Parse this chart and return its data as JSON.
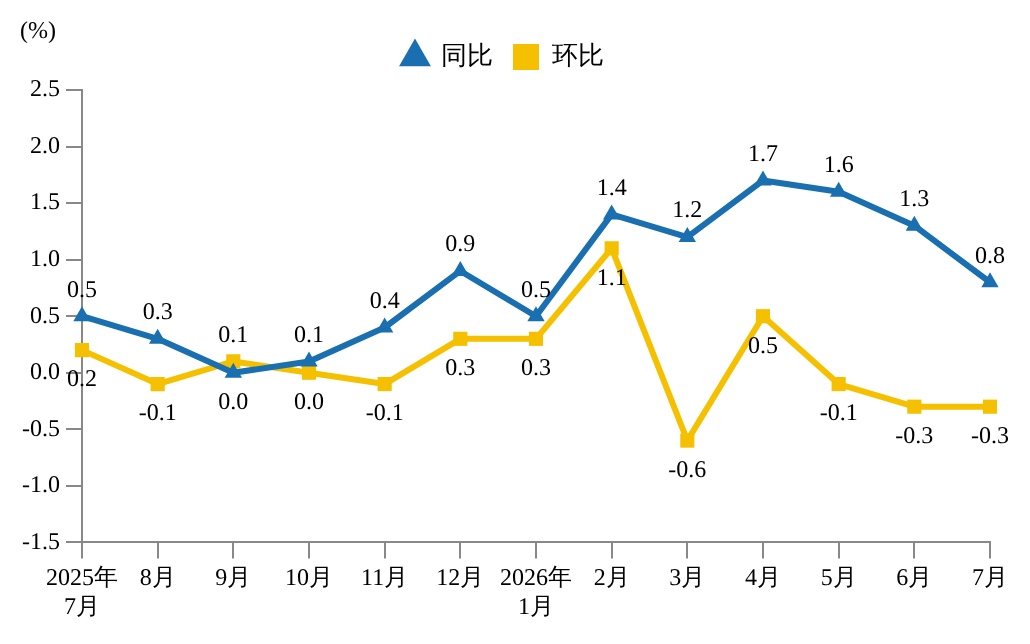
{
  "chart_data": {
    "type": "line",
    "ylabel": "(%)",
    "categories": [
      "2025年\n7月",
      "8月",
      "9月",
      "10月",
      "11月",
      "12月",
      "2026年\n1月",
      "2月",
      "3月",
      "4月",
      "5月",
      "6月",
      "7月"
    ],
    "series": [
      {
        "name": "同比",
        "color": "#1a6fb0",
        "marker": "triangle",
        "values": [
          0.5,
          0.3,
          0.0,
          0.1,
          0.4,
          0.9,
          0.5,
          1.4,
          1.2,
          1.7,
          1.6,
          1.3,
          0.8
        ],
        "value_labels": [
          "0.5",
          "0.3",
          "0.0",
          "0.1",
          "0.4",
          "0.9",
          "0.5",
          "1.4",
          "1.2",
          "1.7",
          "1.6",
          "1.3",
          "0.8"
        ]
      },
      {
        "name": "环比",
        "color": "#f5c000",
        "marker": "square",
        "values": [
          0.2,
          -0.1,
          0.1,
          0.0,
          -0.1,
          0.3,
          0.3,
          1.1,
          -0.6,
          0.5,
          -0.1,
          -0.3,
          -0.3
        ],
        "value_labels": [
          "0.2",
          "-0.1",
          "0.1",
          "0.0",
          "-0.1",
          "0.3",
          "0.3",
          "1.1",
          "-0.6",
          "0.5",
          "-0.1",
          "-0.3",
          "-0.3"
        ]
      }
    ],
    "ylim": [
      -1.5,
      2.5
    ],
    "yticks": [
      {
        "value": -1.5,
        "label": "-1.5"
      },
      {
        "value": -1,
        "label": "-1.0"
      },
      {
        "value": -0.5,
        "label": "-0.5"
      },
      {
        "value": 0,
        "label": "0.0"
      },
      {
        "value": 0.5,
        "label": "0.5"
      },
      {
        "value": 1,
        "label": "1.0"
      },
      {
        "value": 1.5,
        "label": "1.5"
      },
      {
        "value": 2,
        "label": "2.0"
      },
      {
        "value": 2.5,
        "label": "2.5"
      }
    ],
    "grid": false,
    "legend": "top",
    "line_style": "solid"
  }
}
